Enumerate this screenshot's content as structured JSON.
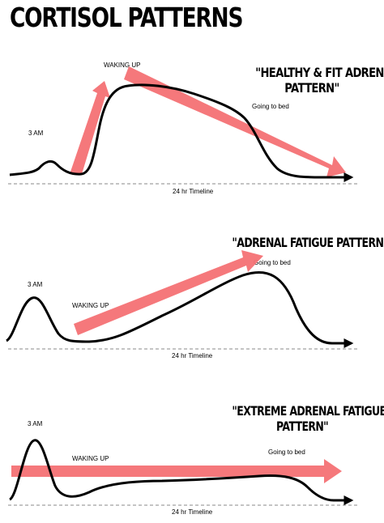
{
  "title": "CORTISOL PATTERNS",
  "panels": [
    {
      "heading_line1": "\"HEALTHY & FIT ADRENAL",
      "heading_line2": "PATTERN\"",
      "label_3am": "3 AM",
      "label_waking": "WAKING UP",
      "label_bed": "Going to bed",
      "timeline_label": "24 hr Timeline"
    },
    {
      "heading_line1": "\"ADRENAL FATIGUE PATTERN\"",
      "label_3am": "3 AM",
      "label_waking": "WAKING UP",
      "label_bed": "Going to bed",
      "timeline_label": "24 hr Timeline"
    },
    {
      "heading_line1": "\"EXTREME ADRENAL FATIGUE",
      "heading_line2": "PATTERN\"",
      "label_3am": "3 AM",
      "label_waking": "WAKING UP",
      "label_bed": "Going to bed",
      "timeline_label": "24 hr Timeline"
    }
  ],
  "colors": {
    "arrow": "#f47174",
    "curve": "#000000",
    "timeline": "#8a8a8a"
  }
}
